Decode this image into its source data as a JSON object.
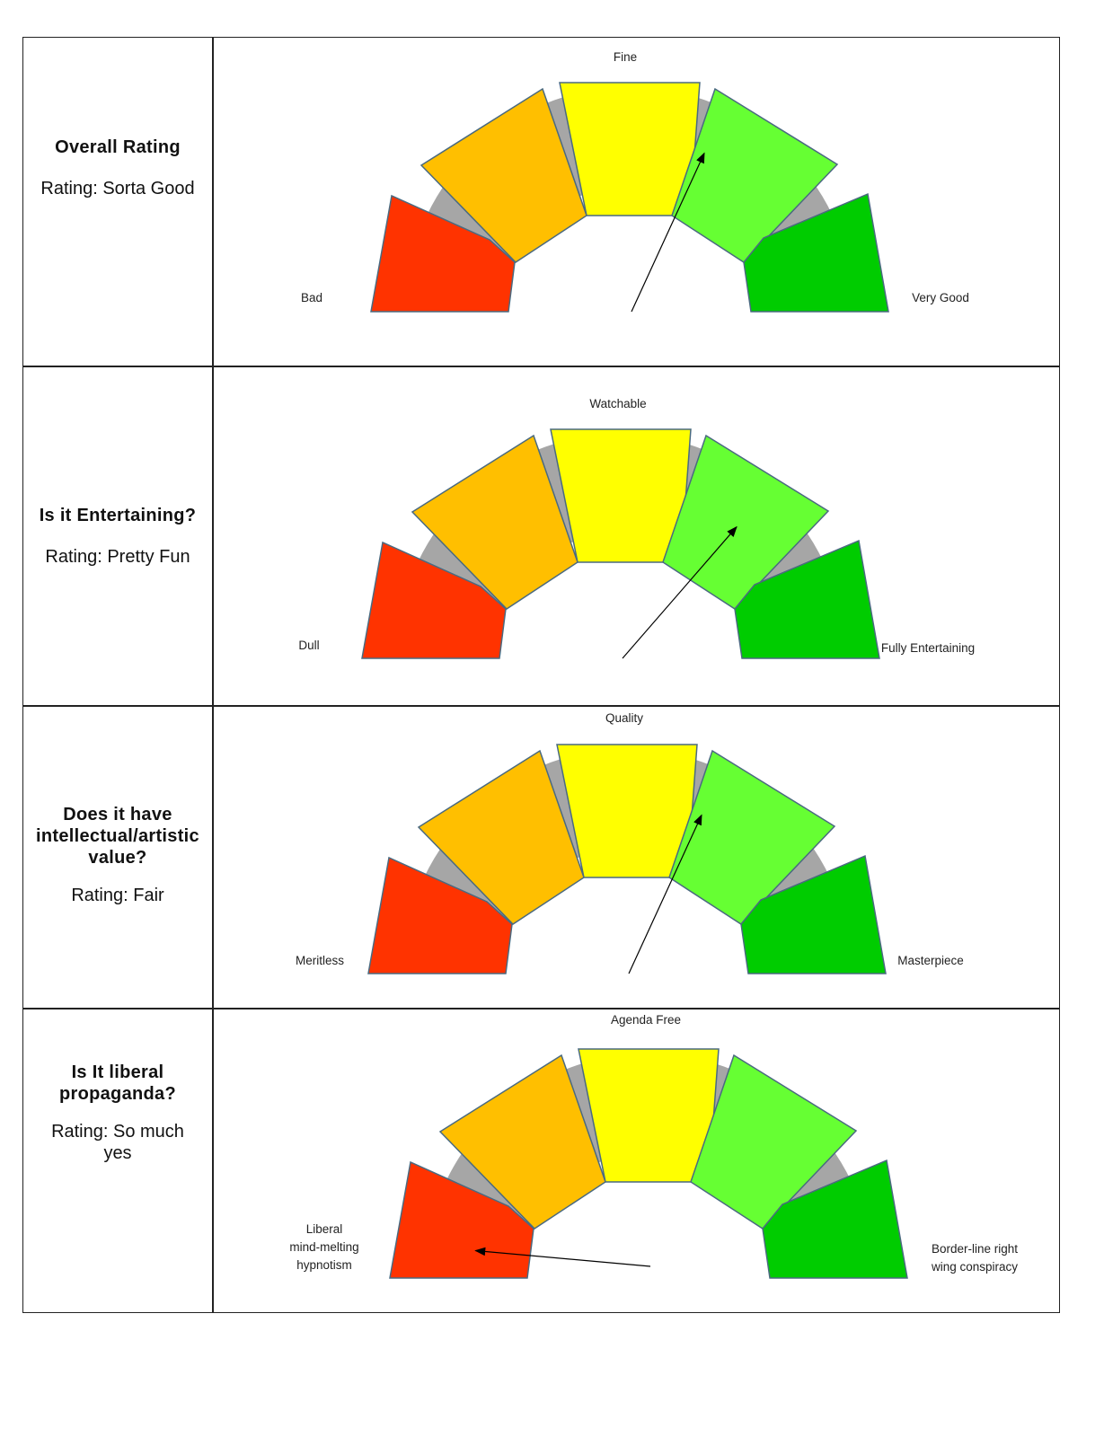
{
  "colors": {
    "red": "#ff3300",
    "orange": "#ffbf00",
    "yellow": "#ffff00",
    "light_green": "#66ff33",
    "dark_green": "#00cc00",
    "track": "#a6a6a6",
    "outline": "#4a6a80"
  },
  "rows": [
    {
      "question": "Overall Rating",
      "rating": "Rating: Sorta Good"
    },
    {
      "question": "Is it Entertaining?",
      "rating": "Rating: Pretty Fun"
    },
    {
      "question": "Does it have intellectual/artistic value?",
      "rating": "Rating: Fair"
    },
    {
      "question": "Is It liberal propaganda?",
      "rating": "Rating: So much yes"
    }
  ],
  "chart_data": [
    {
      "type": "gauge",
      "segments": 5,
      "min_label": "Bad",
      "mid_label": "Fine",
      "max_label": "Very Good",
      "needle_value": 64,
      "range": [
        0,
        100
      ]
    },
    {
      "type": "gauge",
      "segments": 5,
      "min_label": "Dull",
      "mid_label": "Watchable",
      "max_label": "Fully Entertaining",
      "needle_value": 73,
      "range": [
        0,
        100
      ]
    },
    {
      "type": "gauge",
      "segments": 5,
      "min_label": "Meritless",
      "mid_label": "Quality",
      "max_label": "Masterpiece",
      "needle_value": 64,
      "range": [
        0,
        100
      ]
    },
    {
      "type": "gauge",
      "segments": 5,
      "min_label_lines": [
        "Liberal",
        "mind-melting",
        "hypnotism"
      ],
      "mid_label": "Agenda Free",
      "max_label_lines": [
        "Border-line right",
        "wing conspiracy"
      ],
      "needle_value": 5,
      "range": [
        0,
        100
      ]
    }
  ]
}
